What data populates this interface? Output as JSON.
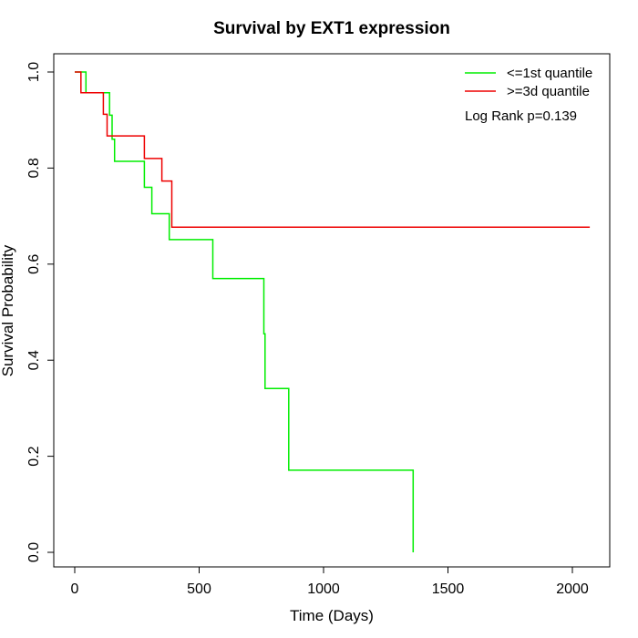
{
  "chart_data": {
    "type": "line",
    "title": "Survival by EXT1 expression",
    "xlabel": "Time (Days)",
    "ylabel": "Survival Probability",
    "xlim": [
      0,
      2070
    ],
    "ylim": [
      0,
      1
    ],
    "x_ticks": [
      0,
      500,
      1000,
      1500,
      2000
    ],
    "y_ticks": [
      0.0,
      0.2,
      0.4,
      0.6,
      0.8,
      1.0
    ],
    "x_tick_labels": [
      "0",
      "500",
      "1000",
      "1500",
      "2000"
    ],
    "y_tick_labels": [
      "0.0",
      "0.2",
      "0.4",
      "0.6",
      "0.8",
      "1.0"
    ],
    "grid": false,
    "legend_position": "top-right",
    "annotation": "Log Rank p=0.139",
    "series": [
      {
        "name": "<=1st quantile",
        "color": "#00ee00",
        "step": true,
        "x": [
          0,
          45,
          45,
          140,
          140,
          150,
          150,
          160,
          160,
          280,
          280,
          310,
          310,
          380,
          380,
          555,
          555,
          760,
          760,
          765,
          765,
          860,
          860,
          1360,
          1360
        ],
        "y": [
          1.0,
          1.0,
          0.957,
          0.957,
          0.91,
          0.91,
          0.86,
          0.86,
          0.814,
          0.814,
          0.76,
          0.76,
          0.705,
          0.705,
          0.651,
          0.651,
          0.57,
          0.57,
          0.455,
          0.455,
          0.341,
          0.341,
          0.171,
          0.171,
          0.0
        ]
      },
      {
        "name": ">=3d quantile",
        "color": "#ee0000",
        "step": true,
        "x": [
          0,
          25,
          25,
          115,
          115,
          130,
          130,
          280,
          280,
          350,
          350,
          390,
          390,
          2070
        ],
        "y": [
          1.0,
          1.0,
          0.957,
          0.957,
          0.912,
          0.912,
          0.867,
          0.867,
          0.82,
          0.82,
          0.773,
          0.773,
          0.677,
          0.677
        ]
      }
    ]
  }
}
